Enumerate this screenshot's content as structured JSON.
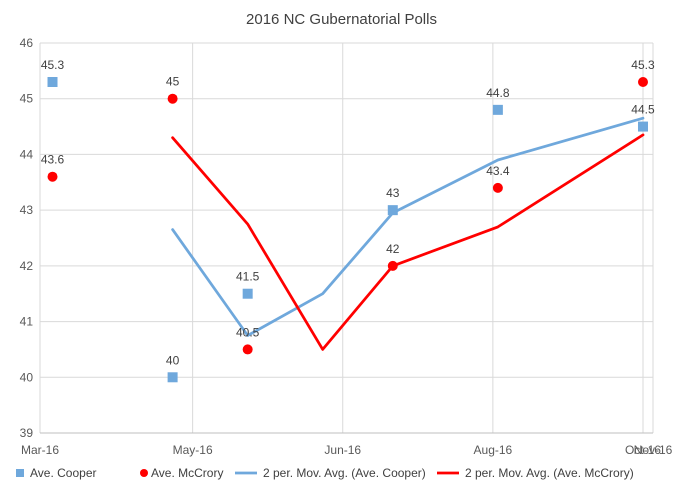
{
  "chart_data": {
    "type": "scatter",
    "title": "2016 NC Gubernatorial Polls",
    "xlabel": "",
    "ylabel": "",
    "xlim": [
      "2016-03-01",
      "2016-11-01"
    ],
    "ylim": [
      39,
      46
    ],
    "x_ticks": [
      "Mar-16",
      "May-16",
      "Jun-16",
      "Aug-16",
      "Oct-16",
      "Nov-16"
    ],
    "x_tick_dates": [
      "2016-03-01",
      "2016-05-01",
      "2016-06-30",
      "2016-08-29",
      "2016-10-28",
      "2016-11-01"
    ],
    "y_ticks": [
      39,
      40,
      41,
      42,
      43,
      44,
      45,
      46
    ],
    "grid": true,
    "legend_position": "bottom",
    "series": [
      {
        "name": "Ave. Cooper",
        "kind": "markers",
        "marker": "square",
        "color": "#6FA8DC",
        "x": [
          "2016-03-06",
          "2016-04-23",
          "2016-05-23",
          "2016-07-20",
          "2016-08-31",
          "2016-10-28"
        ],
        "y": [
          45.3,
          40,
          41.5,
          43,
          44.8,
          44.5
        ],
        "labels": [
          "45.3",
          "40",
          "41.5",
          "43",
          "44.8",
          "44.5"
        ]
      },
      {
        "name": "Ave. McCrory",
        "kind": "markers",
        "marker": "circle",
        "color": "#FF0000",
        "x": [
          "2016-03-06",
          "2016-04-23",
          "2016-05-23",
          "2016-07-20",
          "2016-08-31",
          "2016-10-28"
        ],
        "y": [
          43.6,
          45,
          40.5,
          42,
          43.4,
          45.3
        ],
        "labels": [
          "43.6",
          "45",
          "40.5",
          "42",
          "43.4",
          "45.3"
        ]
      },
      {
        "name": "2 per. Mov. Avg. (Ave. Cooper)",
        "kind": "line",
        "color": "#6FA8DC",
        "x": [
          "2016-04-23",
          "2016-05-23",
          "2016-06-22",
          "2016-07-20",
          "2016-08-31",
          "2016-10-28"
        ],
        "y": [
          42.65,
          40.75,
          41.5,
          42.95,
          43.9,
          44.65
        ]
      },
      {
        "name": "2 per. Mov. Avg. (Ave. McCrory)",
        "kind": "line",
        "color": "#FF0000",
        "x": [
          "2016-04-23",
          "2016-05-23",
          "2016-06-22",
          "2016-07-20",
          "2016-08-31",
          "2016-10-28"
        ],
        "y": [
          44.3,
          42.75,
          40.5,
          42,
          42.7,
          44.35
        ]
      }
    ]
  }
}
